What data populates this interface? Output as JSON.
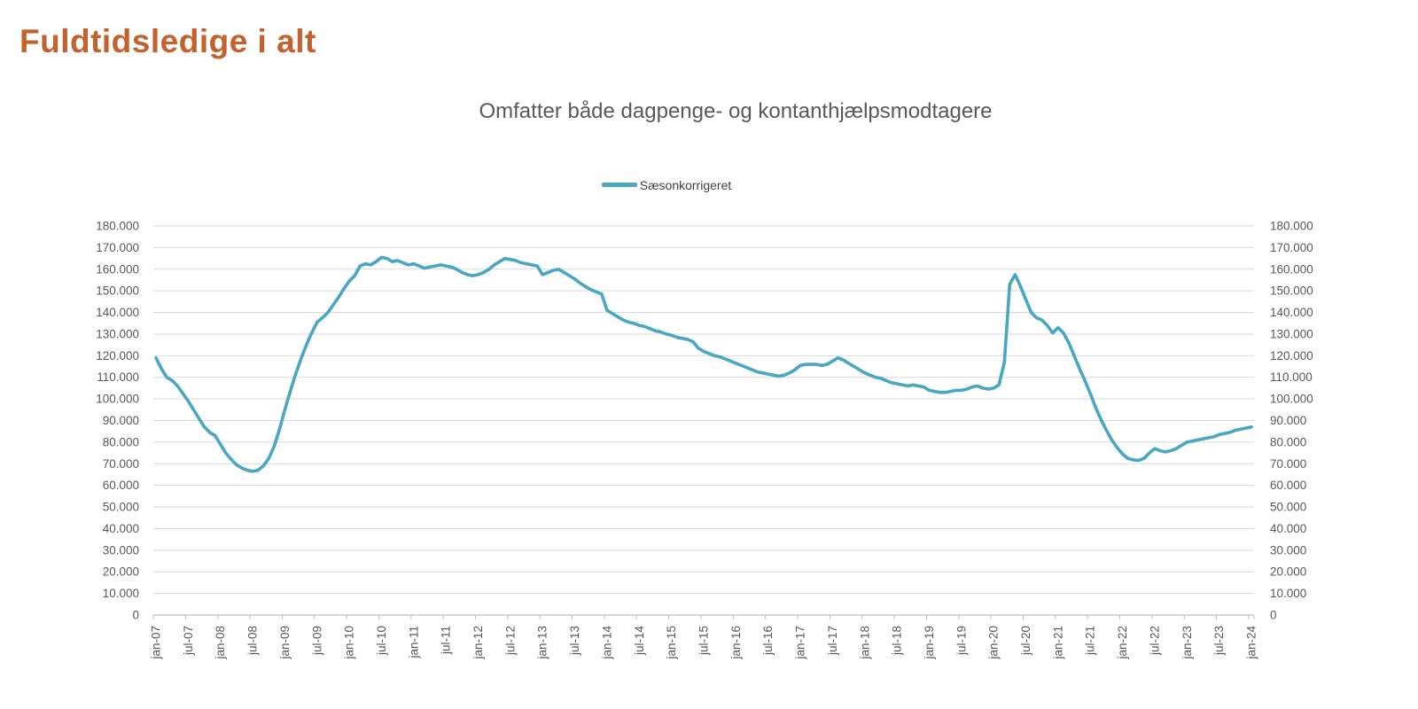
{
  "page": {
    "title": "Fuldtidsledige i alt"
  },
  "chart": {
    "subtitle": "Omfatter både dagpenge- og kontanthjælpsmodtagere",
    "legend": {
      "label": "Sæsonkorrigeret",
      "swatch_color": "#49A7C3"
    }
  },
  "colors": {
    "title": "#C4612C",
    "text": "#595959",
    "gridline": "#D9D9D9",
    "axis": "#BFBFBF",
    "line": "#49A7C3"
  },
  "chart_data": {
    "type": "line",
    "title": "Omfatter både dagpenge- og kontanthjælpsmodtagere",
    "xlabel": "",
    "ylabel": "",
    "ylim": [
      0,
      180000
    ],
    "y_tick_step": 10000,
    "grid": "horizontal",
    "legend_position": "top-center",
    "dual_y_axis": true,
    "y_tick_labels": [
      "180.000",
      "170.000",
      "160.000",
      "150.000",
      "140.000",
      "130.000",
      "120.000",
      "110.000",
      "100.000",
      "90.000",
      "80.000",
      "70.000",
      "60.000",
      "50.000",
      "40.000",
      "30.000",
      "20.000",
      "10.000",
      "0"
    ],
    "x_tick_labels": [
      "jan-07",
      "jul-07",
      "jan-08",
      "jul-08",
      "jan-09",
      "jul-09",
      "jan-10",
      "jul-10",
      "jan-11",
      "jul-11",
      "jan-12",
      "jul-12",
      "jan-13",
      "jul-13",
      "jan-14",
      "jul-14",
      "jan-15",
      "jul-15",
      "jan-16",
      "jul-16",
      "jan-17",
      "jul-17",
      "jan-18",
      "jul-18",
      "jan-19",
      "jul-19",
      "jan-20",
      "jul-20",
      "jan-21",
      "jul-21",
      "jan-22",
      "jul-22",
      "jan-23",
      "jul-23",
      "jan-24"
    ],
    "series": [
      {
        "name": "Sæsonkorrigeret",
        "color": "#49A7C3",
        "start": "jan-07",
        "end": "jan-24",
        "frequency": "monthly",
        "values": [
          119000,
          114000,
          110000,
          108500,
          106000,
          102500,
          99000,
          95000,
          91000,
          87000,
          84500,
          83000,
          79000,
          75000,
          72000,
          69500,
          68000,
          67000,
          66500,
          67000,
          69000,
          72500,
          78000,
          86000,
          95000,
          103500,
          111500,
          118500,
          125000,
          130500,
          135500,
          137500,
          140000,
          143500,
          147000,
          151000,
          154500,
          157000,
          161500,
          162500,
          162000,
          163500,
          165500,
          165000,
          163500,
          164000,
          163000,
          162000,
          162500,
          161500,
          160500,
          161000,
          161500,
          162000,
          161500,
          161000,
          160000,
          158500,
          157500,
          157000,
          157500,
          158500,
          160000,
          162000,
          163500,
          165000,
          164500,
          164000,
          163000,
          162500,
          162000,
          161500,
          157500,
          158500,
          159500,
          160000,
          158500,
          157000,
          155500,
          153500,
          152000,
          150500,
          149500,
          148500,
          141000,
          139500,
          138000,
          136500,
          135500,
          135000,
          134000,
          133500,
          132500,
          131500,
          131000,
          130000,
          129500,
          128500,
          128000,
          127500,
          126500,
          123500,
          122000,
          121000,
          120000,
          119500,
          118500,
          117500,
          116500,
          115500,
          114500,
          113500,
          112500,
          112000,
          111500,
          111000,
          110500,
          111000,
          112000,
          113500,
          115500,
          116000,
          116000,
          116000,
          115500,
          116000,
          117500,
          119000,
          118000,
          116500,
          115000,
          113500,
          112000,
          111000,
          110000,
          109500,
          108500,
          107500,
          107000,
          106500,
          106000,
          106500,
          106000,
          105500,
          104000,
          103500,
          103000,
          103000,
          103500,
          104000,
          104000,
          104500,
          105500,
          106000,
          105000,
          104500,
          105000,
          106500,
          117000,
          153000,
          157500,
          152000,
          146000,
          140000,
          137500,
          136500,
          134000,
          130500,
          133000,
          130500,
          126000,
          120000,
          114000,
          108500,
          102500,
          96000,
          90500,
          85500,
          81000,
          77500,
          74500,
          72500,
          71800,
          71500,
          72500,
          75000,
          77000,
          76000,
          75500,
          76000,
          77000,
          78500,
          80000,
          80500,
          81000,
          81500,
          82000,
          82500,
          83500,
          84000,
          84500,
          85500,
          86000,
          86500,
          87000
        ]
      }
    ]
  }
}
